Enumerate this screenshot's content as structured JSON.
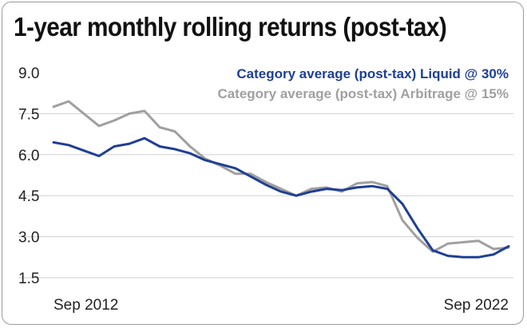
{
  "title": "1-year monthly rolling returns (post-tax)",
  "chart_data": {
    "type": "line",
    "title": "1-year monthly rolling returns (post-tax)",
    "ylim": [
      1.5,
      9.0
    ],
    "y_ticks": [
      "9.0",
      "7.5",
      "6.0",
      "4.5",
      "3.0",
      "1.5"
    ],
    "x_tick_labels": [
      "Sep 2012",
      "Sep 2022"
    ],
    "x": [
      "Sep 2012",
      "Jan 2013",
      "May 2013",
      "Sep 2013",
      "Jan 2014",
      "May 2014",
      "Sep 2014",
      "Jan 2015",
      "May 2015",
      "Sep 2015",
      "Jan 2016",
      "May 2016",
      "Sep 2016",
      "Jan 2017",
      "May 2017",
      "Sep 2017",
      "Jan 2018",
      "May 2018",
      "Sep 2018",
      "Jan 2019",
      "May 2019",
      "Sep 2019",
      "Jan 2020",
      "May 2020",
      "Sep 2020",
      "Jan 2021",
      "May 2021",
      "Sep 2021",
      "Jan 2022",
      "May 2022",
      "Sep 2022"
    ],
    "grid": true,
    "legend_position": "top-right",
    "series": [
      {
        "name": "Category average (post-tax) Liquid @ 30%",
        "color": "#1f3f94",
        "values": [
          6.45,
          6.35,
          6.15,
          5.95,
          6.3,
          6.4,
          6.6,
          6.3,
          6.2,
          6.05,
          5.8,
          5.65,
          5.5,
          5.2,
          4.9,
          4.65,
          4.5,
          4.65,
          4.75,
          4.7,
          4.8,
          4.85,
          4.75,
          4.2,
          3.3,
          2.5,
          2.3,
          2.25,
          2.25,
          2.35,
          2.65
        ]
      },
      {
        "name": "Category average (post-tax) Arbitrage @ 15%",
        "color": "#a0a0a0",
        "values": [
          7.75,
          7.95,
          7.5,
          7.05,
          7.25,
          7.5,
          7.6,
          7.0,
          6.85,
          6.3,
          5.85,
          5.6,
          5.3,
          5.3,
          5.0,
          4.75,
          4.5,
          4.75,
          4.8,
          4.65,
          4.95,
          5.0,
          4.85,
          3.6,
          2.95,
          2.45,
          2.75,
          2.8,
          2.85,
          2.55,
          2.6
        ]
      }
    ]
  }
}
